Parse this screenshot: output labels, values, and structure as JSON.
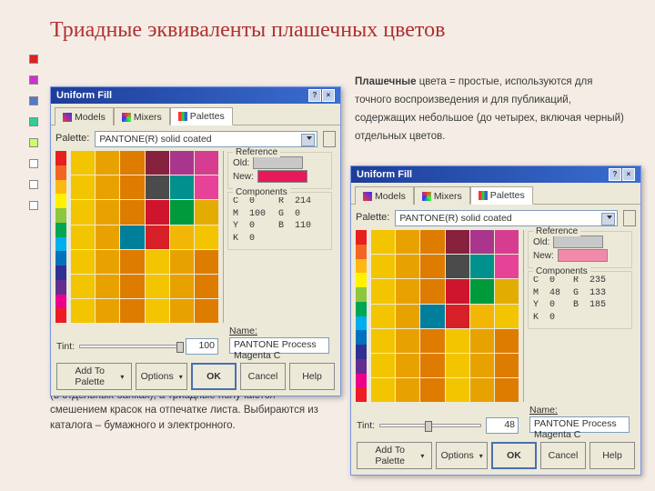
{
  "page_title": "Триадные эквиваленты плашечных цветов",
  "desc_top": "<b>Плашечные</b> цвета = простые, используются для точного воспроизведения  и для публикаций, содержащих небольшое (до четырех, включая черный) отдельных цветов.",
  "desc_bottom": "Краски <b>плашечных</b> цветов поставляются смешанными (в отдельных банках), а триадные получаются смешением красок на отпечатке листа. Выбираются из каталога – бумажного и электронного.",
  "left_markers": [
    "#d22",
    "#c3c",
    "#57c",
    "#3c9",
    "#cf6",
    "#fff",
    "#fff",
    "#fff"
  ],
  "br_markers": [
    {
      "fill": "#d22",
      "border": "#d22"
    },
    {
      "fill": "none",
      "border": "#d22"
    },
    {
      "fill": "none",
      "border": "#36c"
    },
    {
      "fill": "#36c",
      "border": "#36c"
    }
  ],
  "vstrip_colors": [
    "#e81f1f",
    "#f26522",
    "#fdb813",
    "#fff200",
    "#8dc63f",
    "#00a651",
    "#00aeef",
    "#0072bc",
    "#2e3192",
    "#662d91",
    "#ec008c",
    "#ed1c24"
  ],
  "grid_colors": [
    "#f3c500",
    "#e8a200",
    "#de7c00",
    "#86213e",
    "#a9368c",
    "#d63d91",
    "#f3c500",
    "#e8a200",
    "#de7c00",
    "#4b4b4b",
    "#00918d",
    "#e64298",
    "#f3c500",
    "#e8a200",
    "#de7c00",
    "#cf152d",
    "#009a3d",
    "#e3ac00",
    "#f3c500",
    "#e8a200",
    "#007f9b",
    "#d61f26",
    "#f2b705",
    "#f3c500",
    "#f3c500",
    "#e8a200",
    "#de7c00",
    "#f3c500",
    "#e8a200",
    "#de7c00",
    "#f3c500",
    "#e8a200",
    "#de7c00",
    "#f3c500",
    "#e8a200",
    "#de7c00",
    "#f3c500",
    "#e8a200",
    "#de7c00",
    "#f3c500",
    "#e8a200",
    "#de7c00"
  ],
  "dialog": {
    "title": "Uniform Fill",
    "tabs": {
      "models": "Models",
      "mixers": "Mixers",
      "palettes": "Palettes",
      "active": "Palettes"
    },
    "palette_label": "Palette:",
    "palette_value": "PANTONE(R) solid coated",
    "ref_title": "Reference",
    "old_label": "Old:",
    "new_label": "New:",
    "comp_title": "Components",
    "tint_label": "Tint:",
    "name_label": "Name:",
    "name_value": "PANTONE Process Magenta C",
    "buttons": {
      "add": "Add To Palette",
      "options": "Options",
      "ok": "OK",
      "cancel": "Cancel",
      "help": "Help"
    }
  },
  "d1": {
    "old_color": "#c8c8c8",
    "new_color": "#e6195a",
    "components": {
      "C": 0,
      "M": 100,
      "Y": 0,
      "K": 0,
      "R": 214,
      "G": 0,
      "B": 110
    },
    "tint": 100,
    "thumb_pct": 100
  },
  "d2": {
    "old_color": "#c8c8c8",
    "new_color": "#f389a9",
    "components": {
      "C": 0,
      "M": 48,
      "Y": 0,
      "K": 0,
      "R": 235,
      "G": 133,
      "B": 185
    },
    "tint": 48,
    "thumb_pct": 48
  }
}
